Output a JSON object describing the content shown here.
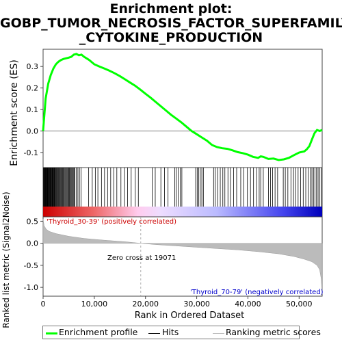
{
  "title_line1": "Enrichment plot:",
  "title_line2": "GOBP_TUMOR_NECROSIS_FACTOR_SUPERFAMILY",
  "title_line3": "_CYTOKINE_PRODUCTION",
  "legend": {
    "enrichment": "Enrichment profile",
    "hits": "Hits",
    "ranking": "Ranking metric scores"
  },
  "labels": {
    "pos_class": "'Thyroid_30-39' (positively correlated)",
    "neg_class": "'Thyroid_70-79' (negatively correlated)",
    "zero_cross": "Zero cross at 19071"
  },
  "colors": {
    "enrichment": "#00ff00",
    "pos": "#cc0000",
    "neg": "#0000cc"
  },
  "chart_data": [
    {
      "type": "line",
      "name": "enrichment-profile",
      "ylabel": "Enrichment score (ES)",
      "xlim": [
        0,
        54500
      ],
      "ylim": [
        -0.17,
        0.38
      ],
      "yticks": [
        -0.1,
        0.0,
        0.1,
        0.2,
        0.3
      ],
      "x": [
        0,
        500,
        1000,
        1500,
        2000,
        2500,
        3000,
        3500,
        4000,
        4500,
        5000,
        5500,
        6000,
        6500,
        7000,
        7500,
        8000,
        9000,
        10000,
        11000,
        12000,
        13000,
        14000,
        15000,
        16000,
        17000,
        18000,
        19000,
        20000,
        21000,
        22000,
        23000,
        24000,
        25000,
        26000,
        27000,
        28000,
        29000,
        30000,
        31000,
        32000,
        33000,
        34000,
        35000,
        36000,
        37000,
        38000,
        39000,
        40000,
        41000,
        42000,
        42500,
        43000,
        44000,
        45000,
        46000,
        47000,
        48000,
        49000,
        50000,
        51000,
        51500,
        52000,
        52500,
        53000,
        53500,
        54000,
        54500
      ],
      "y": [
        0.0,
        0.15,
        0.22,
        0.26,
        0.29,
        0.31,
        0.322,
        0.33,
        0.335,
        0.338,
        0.341,
        0.345,
        0.355,
        0.358,
        0.352,
        0.355,
        0.345,
        0.33,
        0.31,
        0.3,
        0.29,
        0.28,
        0.268,
        0.255,
        0.24,
        0.225,
        0.21,
        0.192,
        0.173,
        0.155,
        0.135,
        0.115,
        0.095,
        0.075,
        0.058,
        0.04,
        0.02,
        0.0,
        -0.015,
        -0.03,
        -0.045,
        -0.065,
        -0.075,
        -0.08,
        -0.083,
        -0.09,
        -0.098,
        -0.103,
        -0.11,
        -0.12,
        -0.125,
        -0.118,
        -0.12,
        -0.13,
        -0.128,
        -0.135,
        -0.132,
        -0.125,
        -0.112,
        -0.1,
        -0.095,
        -0.085,
        -0.07,
        -0.04,
        -0.01,
        0.005,
        0.0,
        0.005
      ]
    },
    {
      "type": "area",
      "name": "ranking-metric",
      "ylabel": "Ranked list metric (Signal2Noise)",
      "xlabel": "Rank in Ordered Dataset",
      "xlim": [
        0,
        54500
      ],
      "ylim": [
        -1.2,
        0.6
      ],
      "yticks": [
        -1.0,
        -0.5,
        0.0,
        0.5
      ],
      "xticks": [
        0,
        10000,
        20000,
        30000,
        40000,
        50000
      ],
      "xtick_labels": [
        "0",
        "10,000",
        "20,000",
        "30,000",
        "40,000",
        "50,000"
      ],
      "x": [
        0,
        200,
        600,
        1200,
        2500,
        5000,
        8000,
        12000,
        16000,
        19071,
        22000,
        26000,
        30000,
        34000,
        38000,
        42000,
        46000,
        49000,
        51000,
        52500,
        53500,
        54000,
        54300,
        54500
      ],
      "y": [
        0.55,
        0.4,
        0.32,
        0.27,
        0.22,
        0.16,
        0.11,
        0.07,
        0.035,
        0.0,
        -0.03,
        -0.06,
        -0.09,
        -0.12,
        -0.15,
        -0.19,
        -0.24,
        -0.3,
        -0.36,
        -0.42,
        -0.5,
        -0.6,
        -0.8,
        -1.15
      ]
    }
  ],
  "hits": [
    60,
    150,
    250,
    330,
    410,
    500,
    580,
    660,
    750,
    830,
    920,
    1000,
    1100,
    1180,
    1260,
    1350,
    1450,
    1540,
    1650,
    1750,
    1850,
    1950,
    2050,
    2150,
    2260,
    2380,
    2500,
    2620,
    2750,
    2880,
    3000,
    3120,
    3250,
    3380,
    3520,
    3650,
    3800,
    3950,
    4100,
    4250,
    4400,
    4550,
    4700,
    4850,
    5000,
    5150,
    5300,
    5450,
    5600,
    5750,
    5900,
    6050,
    6200,
    6500,
    6800,
    7100,
    7400,
    8900,
    9600,
    10200,
    10700,
    11400,
    12000,
    12600,
    13200,
    13800,
    14400,
    15200,
    15900,
    16500,
    17200,
    18000,
    18600,
    21300,
    21900,
    23000,
    23700,
    24400,
    25700,
    26000,
    26400,
    26800,
    27100,
    29800,
    30100,
    30400,
    30700,
    31000,
    31300,
    33300,
    33600,
    34100,
    34600,
    35100,
    35500,
    36100,
    36600,
    37200,
    37800,
    38600,
    39200,
    39900,
    40500,
    41100,
    41700,
    42200,
    42500,
    43000,
    44000,
    44400,
    44800,
    45300,
    45800,
    46900,
    47300,
    47800,
    48400,
    48900,
    49300,
    49800,
    50300,
    50800,
    51300,
    51800,
    52200,
    52500,
    52800,
    53100,
    53400,
    53700,
    54000,
    54300
  ]
}
